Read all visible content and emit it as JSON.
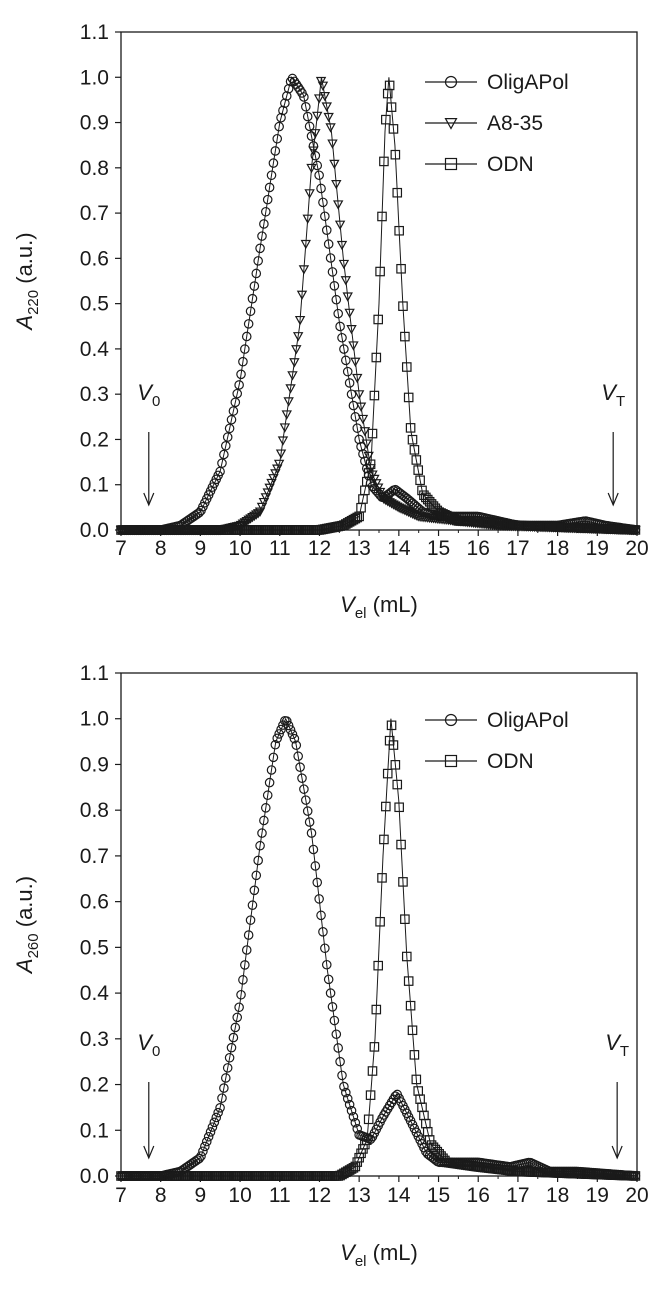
{
  "chart_data": [
    {
      "type": "line",
      "xlabel": {
        "var": "V",
        "sub": "el",
        "unit": " (mL)"
      },
      "ylabel": {
        "var": "A",
        "sub": "220",
        "unit": " (a.u.)"
      },
      "xlim": [
        7,
        20
      ],
      "ylim": [
        0,
        1.1
      ],
      "xticks": [
        "7",
        "8",
        "9",
        "10",
        "11",
        "12",
        "13",
        "14",
        "15",
        "16",
        "17",
        "18",
        "19",
        "20"
      ],
      "yticks": [
        "0.0",
        "0.1",
        "0.2",
        "0.3",
        "0.4",
        "0.5",
        "0.6",
        "0.7",
        "0.8",
        "0.9",
        "1.0",
        "1.1"
      ],
      "grid": false,
      "legend_position": "top-right",
      "series": [
        {
          "name": "OligAPol",
          "marker": "circle",
          "points": [
            [
              7.0,
              0.0
            ],
            [
              8.0,
              0.0
            ],
            [
              8.5,
              0.01
            ],
            [
              9.0,
              0.04
            ],
            [
              9.5,
              0.13
            ],
            [
              10.0,
              0.33
            ],
            [
              10.5,
              0.62
            ],
            [
              11.0,
              0.9
            ],
            [
              11.3,
              1.0
            ],
            [
              11.6,
              0.96
            ],
            [
              12.0,
              0.78
            ],
            [
              12.5,
              0.46
            ],
            [
              13.0,
              0.2
            ],
            [
              13.3,
              0.1
            ],
            [
              13.6,
              0.07
            ],
            [
              13.9,
              0.09
            ],
            [
              14.2,
              0.07
            ],
            [
              14.6,
              0.04
            ],
            [
              15.0,
              0.03
            ],
            [
              16.0,
              0.03
            ],
            [
              17.0,
              0.01
            ],
            [
              18.0,
              0.01
            ],
            [
              18.7,
              0.02
            ],
            [
              19.2,
              0.01
            ],
            [
              20.0,
              0.0
            ]
          ]
        },
        {
          "name": "A8-35",
          "marker": "triangle-down",
          "points": [
            [
              7.0,
              0.0
            ],
            [
              9.5,
              0.0
            ],
            [
              10.0,
              0.01
            ],
            [
              10.5,
              0.04
            ],
            [
              11.0,
              0.15
            ],
            [
              11.5,
              0.45
            ],
            [
              11.8,
              0.8
            ],
            [
              12.05,
              1.0
            ],
            [
              12.3,
              0.88
            ],
            [
              12.6,
              0.6
            ],
            [
              13.0,
              0.3
            ],
            [
              13.3,
              0.13
            ],
            [
              13.6,
              0.07
            ],
            [
              14.0,
              0.05
            ],
            [
              14.5,
              0.03
            ],
            [
              15.5,
              0.02
            ],
            [
              16.5,
              0.01
            ],
            [
              20.0,
              0.0
            ]
          ]
        },
        {
          "name": "ODN",
          "marker": "square",
          "points": [
            [
              7.0,
              0.0
            ],
            [
              12.0,
              0.0
            ],
            [
              12.6,
              0.01
            ],
            [
              13.0,
              0.03
            ],
            [
              13.3,
              0.15
            ],
            [
              13.5,
              0.5
            ],
            [
              13.65,
              0.88
            ],
            [
              13.75,
              1.0
            ],
            [
              13.9,
              0.85
            ],
            [
              14.1,
              0.5
            ],
            [
              14.3,
              0.22
            ],
            [
              14.6,
              0.08
            ],
            [
              15.0,
              0.04
            ],
            [
              15.5,
              0.02
            ],
            [
              16.0,
              0.02
            ],
            [
              17.0,
              0.01
            ],
            [
              20.0,
              0.0
            ]
          ]
        }
      ],
      "annotations": [
        {
          "var": "V",
          "sub": "0",
          "x": 7.7
        },
        {
          "var": "V",
          "sub": "T",
          "x": 19.4
        }
      ]
    },
    {
      "type": "line",
      "xlabel": {
        "var": "V",
        "sub": "el",
        "unit": " (mL)"
      },
      "ylabel": {
        "var": "A",
        "sub": "260",
        "unit": " (a.u.)"
      },
      "xlim": [
        7,
        20
      ],
      "ylim": [
        0,
        1.1
      ],
      "xticks": [
        "7",
        "8",
        "9",
        "10",
        "11",
        "12",
        "13",
        "14",
        "15",
        "16",
        "17",
        "18",
        "19",
        "20"
      ],
      "yticks": [
        "0.0",
        "0.1",
        "0.2",
        "0.3",
        "0.4",
        "0.5",
        "0.6",
        "0.7",
        "0.8",
        "0.9",
        "1.0",
        "1.1"
      ],
      "grid": false,
      "legend_position": "top-right",
      "series": [
        {
          "name": "OligAPol",
          "marker": "circle",
          "points": [
            [
              7.0,
              0.0
            ],
            [
              8.0,
              0.0
            ],
            [
              8.5,
              0.01
            ],
            [
              9.0,
              0.04
            ],
            [
              9.5,
              0.15
            ],
            [
              10.0,
              0.38
            ],
            [
              10.5,
              0.72
            ],
            [
              10.9,
              0.95
            ],
            [
              11.15,
              1.0
            ],
            [
              11.4,
              0.95
            ],
            [
              11.8,
              0.75
            ],
            [
              12.2,
              0.45
            ],
            [
              12.6,
              0.2
            ],
            [
              13.0,
              0.09
            ],
            [
              13.3,
              0.08
            ],
            [
              13.6,
              0.13
            ],
            [
              13.95,
              0.18
            ],
            [
              14.3,
              0.12
            ],
            [
              14.7,
              0.05
            ],
            [
              15.0,
              0.03
            ],
            [
              16.0,
              0.03
            ],
            [
              16.8,
              0.02
            ],
            [
              17.3,
              0.03
            ],
            [
              17.8,
              0.01
            ],
            [
              18.5,
              0.01
            ],
            [
              20.0,
              0.0
            ]
          ]
        },
        {
          "name": "ODN",
          "marker": "square",
          "points": [
            [
              7.0,
              0.0
            ],
            [
              12.5,
              0.0
            ],
            [
              12.9,
              0.02
            ],
            [
              13.2,
              0.08
            ],
            [
              13.4,
              0.3
            ],
            [
              13.6,
              0.7
            ],
            [
              13.8,
              1.0
            ],
            [
              14.0,
              0.82
            ],
            [
              14.2,
              0.48
            ],
            [
              14.45,
              0.2
            ],
            [
              14.8,
              0.07
            ],
            [
              15.2,
              0.03
            ],
            [
              16.0,
              0.02
            ],
            [
              17.0,
              0.01
            ],
            [
              20.0,
              0.0
            ]
          ]
        }
      ],
      "annotations": [
        {
          "var": "V",
          "sub": "0",
          "x": 7.7
        },
        {
          "var": "V",
          "sub": "T",
          "x": 19.5
        }
      ]
    }
  ]
}
